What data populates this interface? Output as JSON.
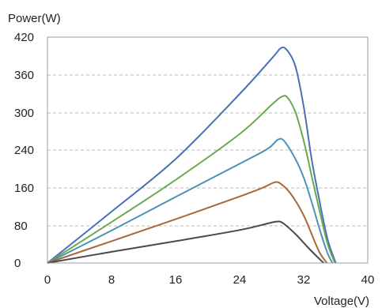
{
  "chart_data": {
    "type": "line",
    "title": "",
    "xlabel": "Voltage(V)",
    "ylabel": "Power(W)",
    "x_ticks": [
      0,
      8,
      16,
      24,
      32,
      40
    ],
    "y_ticks": [
      0,
      80,
      160,
      240,
      300,
      360,
      420
    ],
    "y_tick_labels": [
      "0",
      "80",
      "160",
      "240",
      "300",
      "360",
      "420"
    ],
    "x_tick_labels": [
      "0",
      "8",
      "16",
      "24",
      "32",
      "40"
    ],
    "xlim": [
      0,
      40
    ],
    "ylim": [
      0,
      420
    ],
    "grid": "horizontal dashed",
    "legend": "none",
    "series": [
      {
        "color": "#4a6fb5",
        "points": [
          [
            0,
            0
          ],
          [
            8,
            110
          ],
          [
            16,
            221
          ],
          [
            24,
            330
          ],
          [
            28,
            386
          ],
          [
            29.2,
            403
          ],
          [
            30,
            398
          ],
          [
            31,
            372
          ],
          [
            32,
            310
          ],
          [
            33,
            220
          ],
          [
            34,
            130
          ],
          [
            35,
            50
          ],
          [
            36,
            0
          ]
        ]
      },
      {
        "color": "#6aaa4e",
        "points": [
          [
            0,
            0
          ],
          [
            8,
            88
          ],
          [
            16,
            177
          ],
          [
            24,
            266
          ],
          [
            28,
            313
          ],
          [
            29.3,
            326
          ],
          [
            30,
            324
          ],
          [
            31,
            300
          ],
          [
            32,
            255
          ],
          [
            33,
            185
          ],
          [
            34,
            110
          ],
          [
            35,
            40
          ],
          [
            35.9,
            0
          ]
        ]
      },
      {
        "color": "#4b92b5",
        "points": [
          [
            0,
            0
          ],
          [
            8,
            70
          ],
          [
            16,
            141
          ],
          [
            24,
            211
          ],
          [
            27.5,
            242
          ],
          [
            28.8,
            257
          ],
          [
            29.6,
            254
          ],
          [
            31,
            220
          ],
          [
            32,
            182
          ],
          [
            33,
            130
          ],
          [
            34,
            72
          ],
          [
            35,
            20
          ],
          [
            35.6,
            0
          ]
        ]
      },
      {
        "color": "#a8683a",
        "points": [
          [
            0,
            0
          ],
          [
            8,
            47
          ],
          [
            16,
            94
          ],
          [
            24,
            142
          ],
          [
            26.8,
            160
          ],
          [
            28.4,
            172
          ],
          [
            29.2,
            168
          ],
          [
            30.5,
            145
          ],
          [
            32,
            102
          ],
          [
            33,
            62
          ],
          [
            34,
            22
          ],
          [
            34.9,
            0
          ]
        ]
      },
      {
        "color": "#4a4a4a",
        "points": [
          [
            0,
            0
          ],
          [
            8,
            24
          ],
          [
            16,
            47
          ],
          [
            24,
            71
          ],
          [
            27.5,
            85
          ],
          [
            28.6,
            89
          ],
          [
            29.4,
            86
          ],
          [
            31,
            62
          ],
          [
            32.5,
            34
          ],
          [
            34,
            8
          ],
          [
            34.5,
            0
          ]
        ]
      }
    ]
  }
}
